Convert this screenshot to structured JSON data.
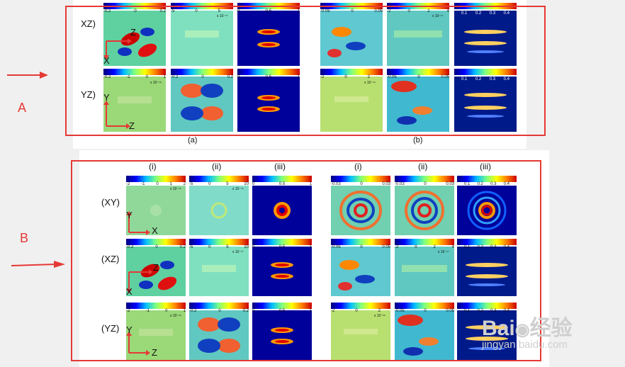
{
  "figure": {
    "side_labels": {
      "a": "A",
      "b": "B"
    },
    "part_a": {
      "row_labels": [
        "XZ)",
        "YZ)"
      ],
      "subfigure_labels": [
        "(a)",
        "(b)"
      ],
      "colorbars": {
        "xz": [
          [
            "-0.2",
            "0",
            "0.2"
          ],
          [
            "-5",
            "0",
            "5"
          ],
          [
            "0",
            "0.5",
            "1"
          ],
          [
            "-0.05",
            "0",
            "0.05"
          ],
          [
            "-2",
            "0",
            "2",
            "4"
          ],
          [
            "0.1",
            "0.2",
            "0.3",
            "0.4"
          ]
        ],
        "yz": [
          [
            "-0.2",
            "-1",
            "0",
            "1"
          ],
          [
            "-0.2",
            "0",
            "0.2"
          ],
          [
            "0",
            "0.5",
            "1"
          ],
          [
            "-2",
            "0",
            "2"
          ],
          [
            "-0.05",
            "0",
            "0.05"
          ],
          [
            "0.1",
            "0.2",
            "0.3",
            "0.4"
          ]
        ]
      },
      "multipliers": {
        "xz2": "x 10⁻¹⁷",
        "xz5": "x 10⁻¹⁷",
        "yz1": "x 10⁻¹⁶",
        "yz4": "x 10⁻¹⁶"
      },
      "axis_letters": {
        "xz_a": "Z",
        "xz_b": "X",
        "yz_a": "Y",
        "yz_b": "Z"
      }
    },
    "part_b": {
      "column_labels": [
        "(i)",
        "(ii)",
        "(iii)",
        "(i)",
        "(ii)",
        "(iii)"
      ],
      "row_labels": [
        "(XY)",
        "(XZ)",
        "(YZ)"
      ],
      "colorbars": {
        "xy": [
          [
            "-2",
            "-1",
            "0",
            "1",
            "2"
          ],
          [
            "-5",
            "0",
            "5",
            "10"
          ],
          [
            "0",
            "0.5",
            "1"
          ],
          [
            "-0.03",
            "0",
            "0.03"
          ],
          [
            "-0.03",
            "0",
            "0.03"
          ],
          [
            "0.1",
            "0.2",
            "0.3",
            "0.4"
          ]
        ],
        "xz": [
          [
            "-0.2",
            "0",
            "0.2"
          ],
          [
            "-5",
            "0",
            "5",
            "10"
          ],
          [
            "0",
            "0.5",
            "1"
          ],
          [
            "-0.05",
            "0",
            "0.05"
          ],
          [
            "-2",
            "0",
            "2",
            "4"
          ],
          [
            "0.1",
            "0.2",
            "0.3",
            "0.4"
          ]
        ],
        "yz": [
          [
            "-2",
            "-1",
            "0",
            "1"
          ],
          [
            "-0.2",
            "0",
            "0.2"
          ],
          [
            "0",
            "0.5",
            "1"
          ],
          [
            "-2",
            "0",
            "2"
          ],
          [
            "-0.05",
            "0",
            "0.05"
          ],
          [
            "0.1",
            "0.2",
            "0.3",
            "0.4"
          ]
        ]
      },
      "multipliers": {
        "xy1": "x 10⁻¹⁶",
        "xy2": "x 10⁻¹⁶",
        "xz2": "x 10⁻¹⁷",
        "xz5": "x 10⁻¹⁷",
        "yz1": "x 10⁻¹⁶",
        "yz4": "x 10⁻¹⁶"
      },
      "axis_letters": {
        "xy_a": "Y",
        "xy_b": "X",
        "xz_a": "Z",
        "xz_b": "X",
        "yz_a": "Y",
        "yz_b": "Z"
      }
    },
    "watermark": {
      "brand": "Bai",
      "brand2": "经验",
      "url": "jingyan.baidu.com"
    }
  },
  "colors": {
    "annotation_red": "#e53935"
  }
}
